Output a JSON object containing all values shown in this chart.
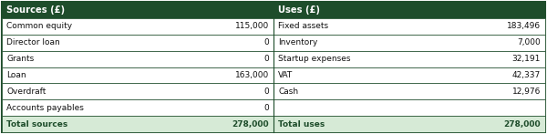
{
  "header_bg": "#1e4d2b",
  "header_text_color": "#ffffff",
  "row_bg": "#ffffff",
  "total_bg": "#d6ead6",
  "total_text_color": "#1e4d2b",
  "border_color": "#1e4d2b",
  "body_text_color": "#111111",
  "col_left_header": "Sources (£)",
  "col_right_header": "Uses (£)",
  "sources": [
    [
      "Common equity",
      "115,000"
    ],
    [
      "Director loan",
      "0"
    ],
    [
      "Grants",
      "0"
    ],
    [
      "Loan",
      "163,000"
    ],
    [
      "Overdraft",
      "0"
    ],
    [
      "Accounts payables",
      "0"
    ]
  ],
  "uses": [
    [
      "Fixed assets",
      "183,496"
    ],
    [
      "Inventory",
      "7,000"
    ],
    [
      "Startup expenses",
      "32,191"
    ],
    [
      "VAT",
      "42,337"
    ],
    [
      "Cash",
      "12,976"
    ],
    [
      "",
      ""
    ]
  ],
  "total_sources_label": "Total sources",
  "total_sources_value": "278,000",
  "total_uses_label": "Total uses",
  "total_uses_value": "278,000",
  "fig_width": 6.0,
  "fig_height": 1.47,
  "dpi": 100
}
